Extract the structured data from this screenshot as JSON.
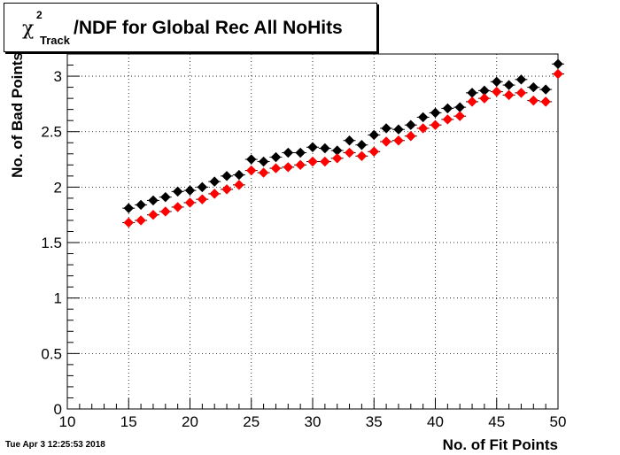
{
  "chart_data": {
    "type": "scatter",
    "title_symbol": "χ",
    "title_superscript": "2",
    "title_subscript": "Track",
    "title_rest": "/NDF for Global Rec All NoHits",
    "xlabel": "No. of Fit Points",
    "ylabel": "No. of Bad Points",
    "xlim": [
      10,
      50
    ],
    "ylim": [
      0,
      3.2
    ],
    "x_ticks": [
      10,
      15,
      20,
      25,
      30,
      35,
      40,
      45,
      50
    ],
    "y_ticks": [
      0,
      0.5,
      1,
      1.5,
      2,
      2.5,
      3
    ],
    "grid": true,
    "series": [
      {
        "color": "#000000",
        "x": [
          15,
          16,
          17,
          18,
          19,
          20,
          21,
          22,
          23,
          24,
          25,
          26,
          27,
          28,
          29,
          30,
          31,
          32,
          33,
          34,
          35,
          36,
          37,
          38,
          39,
          40,
          41,
          42,
          43,
          44,
          45,
          46,
          47,
          48,
          49,
          50
        ],
        "y": [
          1.81,
          1.84,
          1.88,
          1.91,
          1.96,
          1.97,
          2.0,
          2.05,
          2.1,
          2.11,
          2.25,
          2.23,
          2.27,
          2.31,
          2.31,
          2.36,
          2.35,
          2.33,
          2.42,
          2.38,
          2.47,
          2.53,
          2.52,
          2.56,
          2.63,
          2.67,
          2.71,
          2.72,
          2.85,
          2.87,
          2.95,
          2.92,
          2.97,
          2.9,
          2.88,
          3.11
        ]
      },
      {
        "color": "#ff0000",
        "x": [
          15,
          16,
          17,
          18,
          19,
          20,
          21,
          22,
          23,
          24,
          25,
          26,
          27,
          28,
          29,
          30,
          31,
          32,
          33,
          34,
          35,
          36,
          37,
          38,
          39,
          40,
          41,
          42,
          43,
          44,
          45,
          46,
          47,
          48,
          49,
          50
        ],
        "y": [
          1.68,
          1.7,
          1.75,
          1.78,
          1.82,
          1.86,
          1.89,
          1.94,
          1.98,
          2.02,
          2.15,
          2.13,
          2.17,
          2.18,
          2.2,
          2.23,
          2.23,
          2.26,
          2.31,
          2.28,
          2.32,
          2.41,
          2.42,
          2.46,
          2.53,
          2.56,
          2.61,
          2.64,
          2.77,
          2.8,
          2.86,
          2.83,
          2.85,
          2.78,
          2.77,
          3.02
        ]
      }
    ]
  },
  "footer": {
    "datestamp": "Tue Apr  3 12:25:53 2018"
  }
}
